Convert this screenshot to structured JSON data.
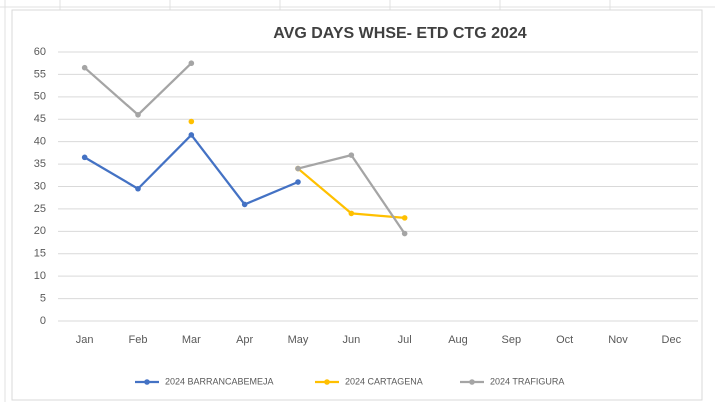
{
  "chart_data": {
    "type": "line",
    "title": "AVG DAYS WHSE- ETD CTG 2024",
    "categories": [
      "Jan",
      "Feb",
      "Mar",
      "Apr",
      "May",
      "Jun",
      "Jul",
      "Aug",
      "Sep",
      "Oct",
      "Nov",
      "Dec"
    ],
    "series": [
      {
        "name": "2024 BARRANCABEMEJA",
        "color": "#4472c4",
        "values": [
          36.5,
          29.5,
          41.5,
          26,
          31,
          null,
          null,
          null,
          null,
          null,
          null,
          null
        ]
      },
      {
        "name": "2024 CARTAGENA",
        "color": "#ffc000",
        "values": [
          null,
          null,
          44.5,
          null,
          34,
          24,
          23,
          null,
          null,
          null,
          null,
          null
        ]
      },
      {
        "name": "2024 TRAFIGURA",
        "color": "#a5a5a5",
        "values": [
          56.5,
          46,
          57.5,
          null,
          34,
          37,
          19.5,
          null,
          null,
          null,
          null,
          null
        ]
      }
    ],
    "ylim": [
      0,
      60
    ],
    "yticks": [
      0,
      5,
      10,
      15,
      20,
      25,
      30,
      35,
      40,
      45,
      50,
      55,
      60
    ],
    "grid": true,
    "legend": "bottom"
  }
}
